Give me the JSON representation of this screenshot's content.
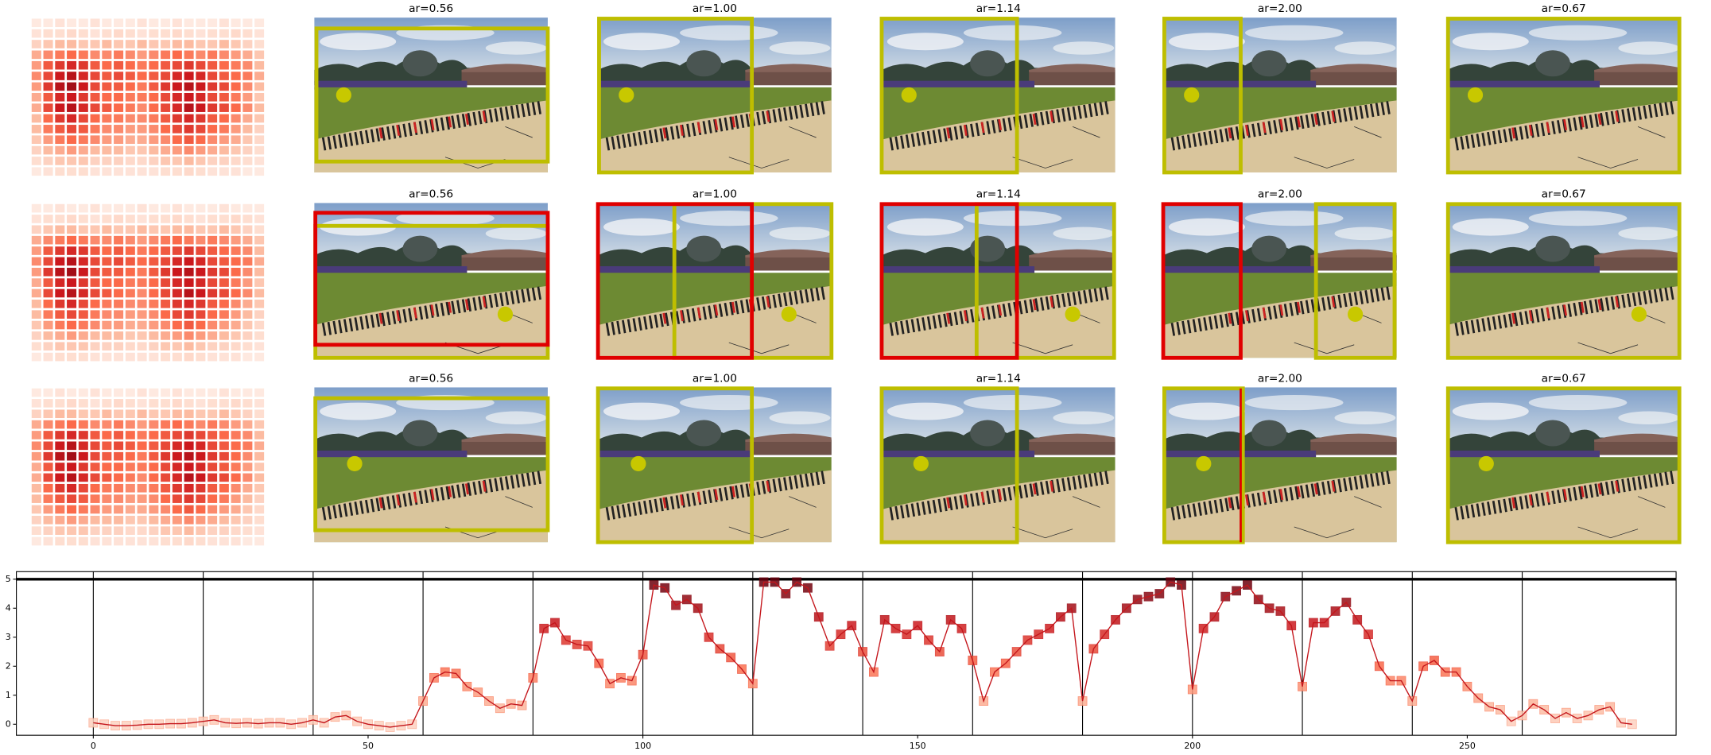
{
  "heatmap": {
    "rows": [
      [
        5,
        5,
        8,
        5,
        5,
        8,
        5,
        5,
        5,
        8,
        5,
        5,
        8,
        5,
        5,
        5,
        8,
        5,
        5,
        5
      ],
      [
        8,
        10,
        10,
        12,
        10,
        8,
        10,
        12,
        10,
        8,
        10,
        10,
        12,
        10,
        8,
        10,
        10,
        12,
        10,
        8
      ],
      [
        15,
        20,
        25,
        25,
        20,
        20,
        25,
        20,
        20,
        25,
        20,
        20,
        25,
        25,
        20,
        20,
        25,
        20,
        15,
        10
      ],
      [
        30,
        40,
        45,
        50,
        45,
        40,
        40,
        45,
        40,
        35,
        40,
        45,
        50,
        45,
        40,
        45,
        40,
        35,
        30,
        20
      ],
      [
        35,
        55,
        65,
        70,
        65,
        55,
        50,
        55,
        50,
        45,
        50,
        55,
        60,
        65,
        60,
        55,
        50,
        45,
        40,
        25
      ],
      [
        40,
        60,
        75,
        80,
        70,
        60,
        55,
        60,
        55,
        50,
        55,
        60,
        70,
        75,
        70,
        60,
        55,
        50,
        45,
        30
      ],
      [
        35,
        65,
        80,
        85,
        75,
        60,
        55,
        55,
        50,
        45,
        55,
        65,
        75,
        80,
        75,
        65,
        60,
        50,
        40,
        25
      ],
      [
        30,
        55,
        70,
        75,
        65,
        55,
        50,
        50,
        45,
        45,
        50,
        60,
        70,
        75,
        70,
        60,
        55,
        45,
        35,
        20
      ],
      [
        30,
        60,
        75,
        80,
        70,
        60,
        55,
        50,
        45,
        40,
        50,
        60,
        70,
        80,
        75,
        65,
        60,
        50,
        40,
        25
      ],
      [
        25,
        50,
        65,
        70,
        60,
        50,
        45,
        45,
        40,
        40,
        45,
        55,
        65,
        70,
        65,
        55,
        50,
        40,
        30,
        20
      ],
      [
        25,
        45,
        55,
        60,
        55,
        45,
        40,
        40,
        35,
        35,
        40,
        50,
        60,
        65,
        60,
        50,
        45,
        35,
        25,
        15
      ],
      [
        20,
        35,
        45,
        50,
        45,
        40,
        35,
        35,
        30,
        30,
        35,
        40,
        50,
        55,
        50,
        40,
        35,
        30,
        20,
        12
      ],
      [
        15,
        25,
        30,
        35,
        30,
        25,
        25,
        25,
        20,
        20,
        25,
        30,
        35,
        40,
        35,
        30,
        25,
        20,
        15,
        10
      ],
      [
        10,
        15,
        20,
        20,
        20,
        15,
        15,
        15,
        12,
        12,
        15,
        20,
        20,
        25,
        20,
        15,
        15,
        12,
        10,
        8
      ],
      [
        5,
        8,
        10,
        10,
        10,
        8,
        8,
        8,
        8,
        8,
        8,
        10,
        10,
        12,
        10,
        8,
        8,
        8,
        5,
        5
      ]
    ]
  },
  "panels": {
    "titles": [
      [
        "ar=0.56",
        "ar=1.00",
        "ar=1.14",
        "ar=2.00",
        "ar=0.67"
      ],
      [
        "ar=0.56",
        "ar=1.00",
        "ar=1.14",
        "ar=2.00",
        "ar=0.67"
      ],
      [
        "ar=0.56",
        "ar=1.00",
        "ar=1.14",
        "ar=2.00",
        "ar=0.67"
      ]
    ]
  },
  "chart_data": {
    "type": "line",
    "x": [
      0,
      2,
      4,
      6,
      8,
      10,
      12,
      14,
      16,
      18,
      20,
      22,
      24,
      26,
      28,
      30,
      32,
      34,
      36,
      38,
      40,
      42,
      44,
      46,
      48,
      50,
      52,
      54,
      56,
      58,
      60,
      62,
      64,
      66,
      68,
      70,
      72,
      74,
      76,
      78,
      80,
      82,
      84,
      86,
      88,
      90,
      92,
      94,
      96,
      98,
      100,
      102,
      104,
      106,
      108,
      110,
      112,
      114,
      116,
      118,
      120,
      122,
      124,
      126,
      128,
      130,
      132,
      134,
      136,
      138,
      140,
      142,
      144,
      146,
      148,
      150,
      152,
      154,
      156,
      158,
      160,
      162,
      164,
      166,
      168,
      170,
      172,
      174,
      176,
      178,
      180,
      182,
      184,
      186,
      188,
      190,
      192,
      194,
      196,
      198,
      200,
      202,
      204,
      206,
      208,
      210,
      212,
      214,
      216,
      218,
      220,
      222,
      224,
      226,
      228,
      230,
      232,
      234,
      236,
      238,
      240,
      242,
      244,
      246,
      248,
      250,
      252,
      254,
      256,
      258,
      260,
      262,
      264,
      266,
      268,
      270,
      272,
      274,
      276,
      278,
      280
    ],
    "series": [
      {
        "color": "#c4161c",
        "values": [
          0.05,
          0,
          -0.05,
          -0.05,
          -0.03,
          0,
          0,
          0.02,
          0.02,
          0.05,
          0.1,
          0.15,
          0.05,
          0.03,
          0.05,
          0.02,
          0.05,
          0.05,
          0,
          0.05,
          0.15,
          0.05,
          0.25,
          0.3,
          0.1,
          0,
          -0.05,
          -0.1,
          -0.05,
          0,
          0.8,
          1.6,
          1.8,
          1.75,
          1.3,
          1.1,
          0.8,
          0.55,
          0.7,
          0.65,
          1.6,
          3.3,
          3.5,
          2.9,
          2.75,
          2.7,
          2.1,
          1.4,
          1.6,
          1.5,
          2.4,
          4.8,
          4.7,
          4.1,
          4.3,
          4.0,
          3.0,
          2.6,
          2.3,
          1.9,
          1.4,
          4.9,
          4.9,
          4.5,
          4.9,
          4.7,
          3.7,
          2.7,
          3.1,
          3.4,
          2.5,
          1.8,
          3.6,
          3.3,
          3.1,
          3.4,
          2.9,
          2.5,
          3.6,
          3.3,
          2.2,
          0.8,
          1.8,
          2.1,
          2.5,
          2.9,
          3.1,
          3.3,
          3.7,
          4.0,
          0.8,
          2.6,
          3.1,
          3.6,
          4.0,
          4.3,
          4.4,
          4.5,
          4.9,
          4.8,
          1.2,
          3.3,
          3.7,
          4.4,
          4.6,
          4.8,
          4.3,
          4.0,
          3.9,
          3.4,
          1.3,
          3.5,
          3.5,
          3.9,
          4.2,
          3.6,
          3.1,
          2.0,
          1.5,
          1.5,
          0.8,
          2.0,
          2.2,
          1.8,
          1.8,
          1.3,
          0.9,
          0.6,
          0.5,
          0.1,
          0.3,
          0.7,
          0.5,
          0.2,
          0.4,
          0.2,
          0.3,
          0.5,
          0.6,
          0.05,
          0
        ]
      }
    ],
    "marker": "square",
    "xlim": [
      -14,
      288
    ],
    "ylim": [
      -0.38,
      5.26
    ],
    "xticks": [
      0,
      50,
      100,
      150,
      200,
      250
    ],
    "yticks": [
      0,
      1,
      2,
      3,
      4,
      5
    ],
    "vlines": [
      0,
      20,
      40,
      60,
      80,
      100,
      120,
      140,
      160,
      180,
      200,
      220,
      240,
      260
    ],
    "hline": 5
  }
}
